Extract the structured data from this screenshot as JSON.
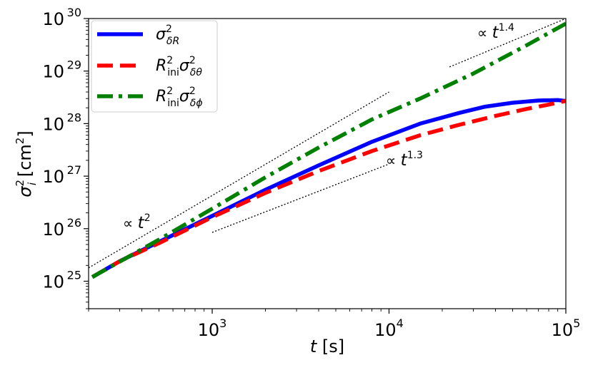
{
  "chart_data": {
    "type": "line",
    "xscale": "log",
    "yscale": "log",
    "xlim": [
      200,
      100000
    ],
    "ylim": [
      3e+24,
      1e+30
    ],
    "xlabel": "t [s]",
    "ylabel": "σ_i^2 [cm^2]",
    "x_ticks": [
      {
        "value": 1000,
        "base": "10",
        "exp": "3"
      },
      {
        "value": 10000,
        "base": "10",
        "exp": "4"
      },
      {
        "value": 100000,
        "base": "10",
        "exp": "5"
      }
    ],
    "y_ticks": [
      {
        "value": 1e+25,
        "base": "10",
        "exp": "25"
      },
      {
        "value": 1e+26,
        "base": "10",
        "exp": "26"
      },
      {
        "value": 1e+27,
        "base": "10",
        "exp": "27"
      },
      {
        "value": 1e+28,
        "base": "10",
        "exp": "28"
      },
      {
        "value": 1e+29,
        "base": "10",
        "exp": "29"
      },
      {
        "value": 1e+30,
        "base": "10",
        "exp": "30"
      }
    ],
    "series": [
      {
        "name": "σ_δR^2",
        "color": "#0000ff",
        "style": "solid",
        "points": [
          [
            210,
            1.2e+25
          ],
          [
            300,
            2.4e+25
          ],
          [
            500,
            5.6e+25
          ],
          [
            1000,
            1.75e+26
          ],
          [
            2000,
            5.5e+26
          ],
          [
            4000,
            1.6e+27
          ],
          [
            8000,
            4.5e+27
          ],
          [
            15000,
            1e+28
          ],
          [
            25000,
            1.6e+28
          ],
          [
            35000,
            2.1e+28
          ],
          [
            50000,
            2.5e+28
          ],
          [
            70000,
            2.75e+28
          ],
          [
            90000,
            2.8e+28
          ],
          [
            100000,
            2.7e+28
          ]
        ]
      },
      {
        "name": "R_ini^2 σ_δθ^2",
        "color": "#ff0000",
        "style": "dashed",
        "points": [
          [
            210,
            1.2e+25
          ],
          [
            300,
            2.4e+25
          ],
          [
            500,
            5.3e+25
          ],
          [
            1000,
            1.65e+26
          ],
          [
            2000,
            4.8e+26
          ],
          [
            4000,
            1.25e+27
          ],
          [
            8000,
            3e+27
          ],
          [
            15000,
            6e+27
          ],
          [
            25000,
            9.5e+27
          ],
          [
            40000,
            1.4e+28
          ],
          [
            60000,
            1.9e+28
          ],
          [
            80000,
            2.3e+28
          ],
          [
            100000,
            2.7e+28
          ]
        ]
      },
      {
        "name": "R_ini^2 σ_δφ^2",
        "color": "#008000",
        "style": "dashdot",
        "points": [
          [
            210,
            1.2e+25
          ],
          [
            500,
            6.2e+25
          ],
          [
            1000,
            2.4e+26
          ],
          [
            2000,
            9.5e+26
          ],
          [
            4000,
            3.5e+27
          ],
          [
            8000,
            1.2e+28
          ],
          [
            15000,
            3e+28
          ],
          [
            30000,
            9e+28
          ],
          [
            60000,
            3.1e+29
          ],
          [
            100000,
            8e+29
          ]
        ]
      }
    ],
    "guides": [
      {
        "label": "∝ t^2",
        "points": [
          [
            200,
            1.8e+25
          ],
          [
            10000,
            4e+28
          ]
        ]
      },
      {
        "label": "∝ t^1.3",
        "points": [
          [
            1000,
            8.5e+25
          ],
          [
            10000,
            1.7e+27
          ]
        ]
      },
      {
        "label": "∝ t^1.4",
        "points": [
          [
            22000,
            1.2e+29
          ],
          [
            100000,
            1e+30
          ]
        ]
      }
    ],
    "annotations": [
      {
        "text_pre": "∝ ",
        "var": "t",
        "exp": "2"
      },
      {
        "text_pre": "∝ ",
        "var": "t",
        "exp": "1.3"
      },
      {
        "text_pre": "∝ ",
        "var": "t",
        "exp": "1.4"
      }
    ],
    "legend": {
      "placement": "top-left",
      "entries": [
        {
          "sym": "σ",
          "sup": "2",
          "sub": "δR",
          "prefix": ""
        },
        {
          "prefix": "R",
          "prefix_sup": "2",
          "prefix_sub": "ini",
          "sym": "σ",
          "sup": "2",
          "sub": "δθ"
        },
        {
          "prefix": "R",
          "prefix_sup": "2",
          "prefix_sub": "ini",
          "sym": "σ",
          "sup": "2",
          "sub": "δϕ"
        }
      ]
    },
    "axis_title_x": {
      "var": "t",
      "unit": " [s]"
    },
    "axis_title_y": {
      "var": "σ",
      "sup": "2",
      "sub": "i",
      "unit_pre": " [cm",
      "unit_sup": "2",
      "unit_post": "]"
    }
  }
}
